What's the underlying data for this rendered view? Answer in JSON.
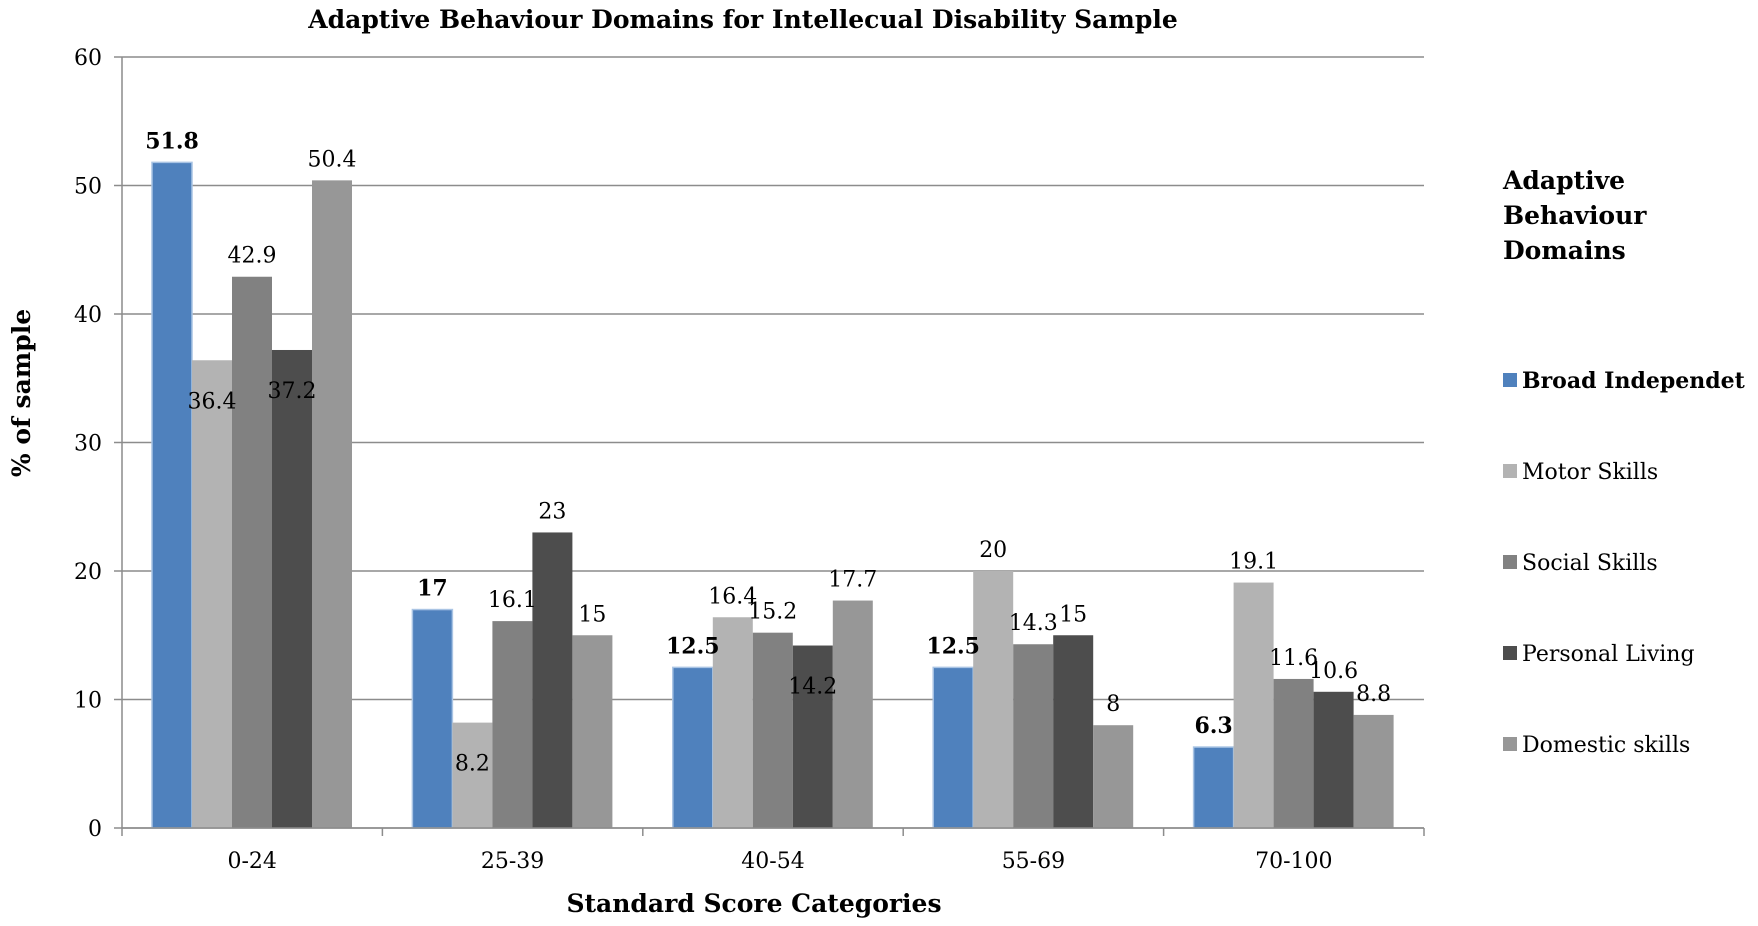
{
  "chart_data": {
    "type": "bar",
    "title": "Adaptive Behaviour Domains for Intellecual Disability Sample",
    "xlabel": "Standard Score Categories",
    "ylabel": "% of sample",
    "ylim": [
      0,
      60
    ],
    "yticks": [
      0,
      10,
      20,
      30,
      40,
      50,
      60
    ],
    "grid": true,
    "legend_position": "right",
    "legend_title": "Adaptive Behaviour Domains",
    "categories": [
      "0-24",
      "25-39",
      "40-54",
      "55-69",
      "70-100"
    ],
    "series": [
      {
        "name": "Broad Independet",
        "color": "#4F81BD",
        "bold": true,
        "values": [
          51.8,
          17,
          12.5,
          12.5,
          6.3
        ]
      },
      {
        "name": "Motor Skills",
        "color": "#B3B3B3",
        "bold": false,
        "values": [
          36.4,
          8.2,
          16.4,
          20,
          19.1
        ]
      },
      {
        "name": "Social Skills",
        "color": "#818181",
        "bold": false,
        "values": [
          42.9,
          16.1,
          15.2,
          14.3,
          11.6
        ]
      },
      {
        "name": "Personal Living",
        "color": "#4D4D4D",
        "bold": false,
        "values": [
          37.2,
          23,
          14.2,
          15,
          10.6
        ]
      },
      {
        "name": "Domestic skills",
        "color": "#979797",
        "bold": false,
        "values": [
          50.4,
          15,
          17.7,
          8,
          8.8
        ]
      }
    ],
    "data_labels": [
      [
        "51.8",
        "17",
        "12.5",
        "12.5",
        "6.3"
      ],
      [
        "36.4",
        "8.2",
        "16.4",
        "20",
        "19.1"
      ],
      [
        "42.9",
        "16.1",
        "15.2",
        "14.3",
        "11.6"
      ],
      [
        "37.2",
        "23",
        "14.2",
        "15",
        "10.6"
      ],
      [
        "50.4",
        "15",
        "17.7",
        "8",
        "8.8"
      ]
    ]
  }
}
